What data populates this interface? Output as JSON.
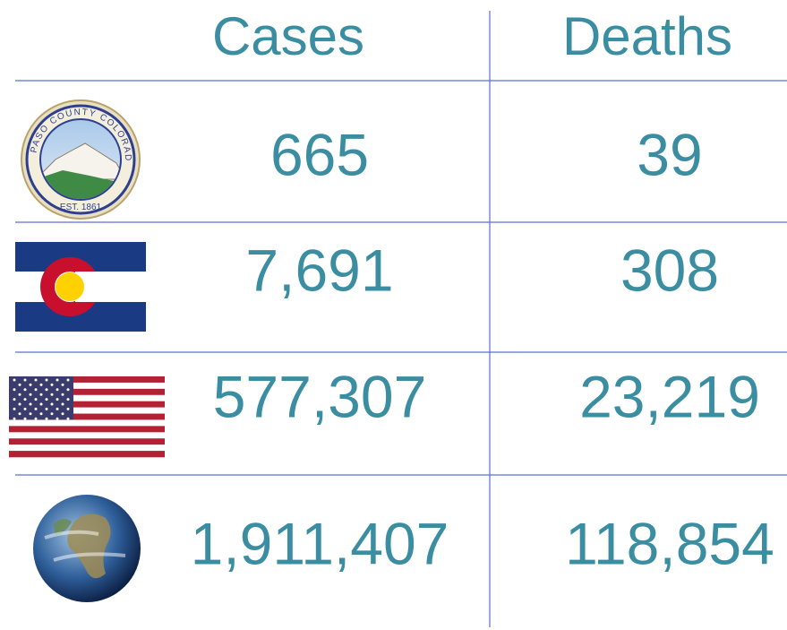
{
  "table": {
    "header": [
      "Cases",
      "Deaths"
    ],
    "rows": [
      [
        "665",
        "39"
      ],
      [
        "7,691",
        "308"
      ],
      [
        "577,307",
        "23,219"
      ],
      [
        "1,911,407",
        "118,854"
      ]
    ]
  },
  "seal": {
    "top": "EL PASO COUNTY COLORADO",
    "bottom": "EST. 1861"
  }
}
